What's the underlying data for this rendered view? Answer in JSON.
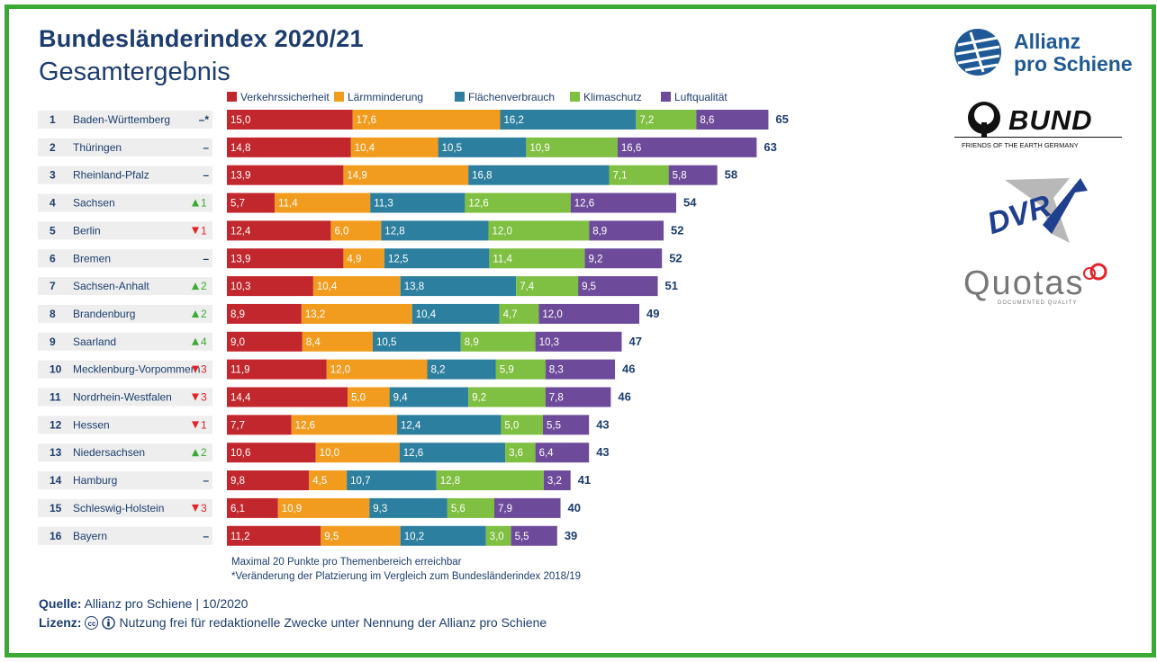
{
  "header": {
    "title": "Bundesländerindex 2020/21",
    "subtitle": "Gesamtergebnis"
  },
  "chart_data": {
    "type": "bar",
    "orientation": "horizontal",
    "stacked": true,
    "legend_position": "top",
    "series": [
      {
        "name": "Verkehrssicherheit",
        "color": "#c1272d"
      },
      {
        "name": "Lärmminderung",
        "color": "#f29c1f"
      },
      {
        "name": "Flächenverbrauch",
        "color": "#2d7f9f"
      },
      {
        "name": "Klimaschutz",
        "color": "#7fbf41"
      },
      {
        "name": "Luftqualität",
        "color": "#6e4b9a"
      }
    ],
    "rows": [
      {
        "rank": "1",
        "state": "Baden-Württemberg",
        "change": "–*",
        "dir": "none",
        "values": [
          "15,0",
          "17,6",
          "16,2",
          "7,2",
          "8,6"
        ],
        "total": "65"
      },
      {
        "rank": "2",
        "state": "Thüringen",
        "change": "–",
        "dir": "none",
        "values": [
          "14,8",
          "10,4",
          "10,5",
          "10,9",
          "16,6"
        ],
        "total": "63"
      },
      {
        "rank": "3",
        "state": "Rheinland-Pfalz",
        "change": "–",
        "dir": "none",
        "values": [
          "13,9",
          "14,9",
          "16,8",
          "7,1",
          "5,8"
        ],
        "total": "58"
      },
      {
        "rank": "4",
        "state": "Sachsen",
        "change": "1",
        "dir": "up",
        "values": [
          "5,7",
          "11,4",
          "11,3",
          "12,6",
          "12,6"
        ],
        "total": "54"
      },
      {
        "rank": "5",
        "state": "Berlin",
        "change": "1",
        "dir": "down",
        "values": [
          "12,4",
          "6,0",
          "12,8",
          "12,0",
          "8,9"
        ],
        "total": "52"
      },
      {
        "rank": "6",
        "state": "Bremen",
        "change": "–",
        "dir": "none",
        "values": [
          "13,9",
          "4,9",
          "12,5",
          "11,4",
          "9,2"
        ],
        "total": "52"
      },
      {
        "rank": "7",
        "state": "Sachsen-Anhalt",
        "change": "2",
        "dir": "up",
        "values": [
          "10,3",
          "10,4",
          "13,8",
          "7,4",
          "9,5"
        ],
        "total": "51"
      },
      {
        "rank": "8",
        "state": "Brandenburg",
        "change": "2",
        "dir": "up",
        "values": [
          "8,9",
          "13,2",
          "10,4",
          "4,7",
          "12,0"
        ],
        "total": "49"
      },
      {
        "rank": "9",
        "state": "Saarland",
        "change": "4",
        "dir": "up",
        "values": [
          "9,0",
          "8,4",
          "10,5",
          "8,9",
          "10,3"
        ],
        "total": "47"
      },
      {
        "rank": "10",
        "state": "Mecklenburg-Vorpommern",
        "change": "3",
        "dir": "down",
        "values": [
          "11,9",
          "12,0",
          "8,2",
          "5,9",
          "8,3"
        ],
        "total": "46"
      },
      {
        "rank": "11",
        "state": "Nordrhein-Westfalen",
        "change": "3",
        "dir": "down",
        "values": [
          "14,4",
          "5,0",
          "9,4",
          "9,2",
          "7,8"
        ],
        "total": "46"
      },
      {
        "rank": "12",
        "state": "Hessen",
        "change": "1",
        "dir": "down",
        "values": [
          "7,7",
          "12,6",
          "12,4",
          "5,0",
          "5,5"
        ],
        "total": "43"
      },
      {
        "rank": "13",
        "state": "Niedersachsen",
        "change": "2",
        "dir": "up",
        "values": [
          "10,6",
          "10,0",
          "12,6",
          "3,6",
          "6,4"
        ],
        "total": "43"
      },
      {
        "rank": "14",
        "state": "Hamburg",
        "change": "–",
        "dir": "none",
        "values": [
          "9,8",
          "4,5",
          "10,7",
          "12,8",
          "3,2"
        ],
        "total": "41"
      },
      {
        "rank": "15",
        "state": "Schleswig-Holstein",
        "change": "3",
        "dir": "down",
        "values": [
          "6,1",
          "10,9",
          "9,3",
          "5,6",
          "7,9"
        ],
        "total": "40"
      },
      {
        "rank": "16",
        "state": "Bayern",
        "change": "–",
        "dir": "none",
        "values": [
          "11,2",
          "9,5",
          "10,2",
          "3,0",
          "5,5"
        ],
        "total": "39"
      }
    ]
  },
  "notes": {
    "line1": "Maximal 20 Punkte pro Themenbereich erreichbar",
    "line2": "*Veränderung der Platzierung im Vergleich zum Bundesländerindex 2018/19"
  },
  "source": {
    "label": "Quelle:",
    "text": "Allianz pro Schiene | 10/2020"
  },
  "license": {
    "label": "Lizenz:",
    "cc": "cc",
    "text": "Nutzung frei für redaktionelle Zwecke unter Nennung der Allianz pro Schiene"
  },
  "logos": {
    "allianz_line1": "Allianz",
    "allianz_line2": "pro Schiene",
    "bund": "BUND",
    "bund_sub": "FRIENDS OF THE EARTH GERMANY",
    "dvr": "DVR",
    "quotas": "Quotas",
    "quotas_sub": "DOCUMENTED QUALITY"
  },
  "colors": {
    "frame": "#3aaa35",
    "text": "#1c3d6e",
    "up": "#3aaa35",
    "down": "#e2232a",
    "rowbg": "#eeeeee"
  }
}
